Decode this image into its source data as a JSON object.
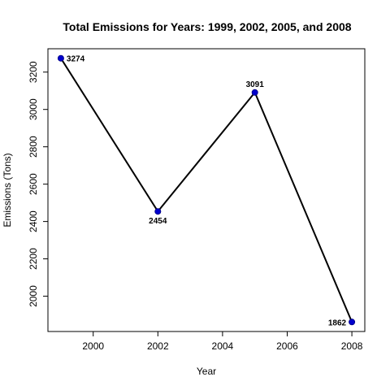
{
  "chart_data": {
    "type": "line",
    "title": "Total Emissions for Years: 1999, 2002, 2005, and 2008",
    "xlabel": "Year",
    "ylabel": "Emissions (Tons)",
    "x": [
      1999,
      2002,
      2005,
      2008
    ],
    "values": [
      3274,
      2454,
      3091,
      1862
    ],
    "data_labels": [
      "3274",
      "2454",
      "3091",
      "1862"
    ],
    "xlim": [
      1998.6,
      2008.4
    ],
    "ylim": [
      1811,
      3325
    ],
    "xticks": [
      2000,
      2002,
      2004,
      2006,
      2008
    ],
    "xtick_labels": [
      "2000",
      "2002",
      "2004",
      "2006",
      "2008"
    ],
    "yticks": [
      2000,
      2200,
      2400,
      2600,
      2800,
      3000,
      3200
    ],
    "ytick_labels": [
      "2000",
      "2200",
      "2400",
      "2600",
      "2800",
      "3000",
      "3200"
    ],
    "grid": false,
    "line_color": "#000000",
    "point_color": "#0000CD"
  }
}
